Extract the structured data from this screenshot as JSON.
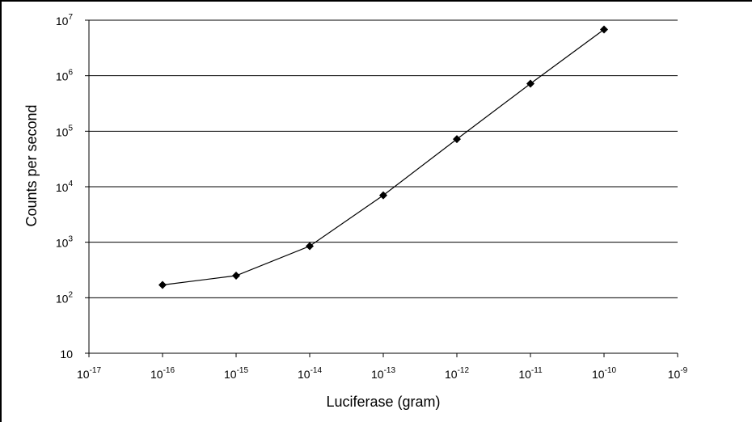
{
  "chart_data": {
    "type": "line",
    "xlabel": "Luciferase (gram)",
    "ylabel": "Counts per second",
    "x_scale": "log",
    "y_scale": "log",
    "xlim": [
      1e-17,
      1e-09
    ],
    "ylim": [
      10,
      10000000
    ],
    "grid": "horizontal",
    "legend": "none",
    "x_tick_labels": [
      {
        "base": "10",
        "exp": "-17"
      },
      {
        "base": "10",
        "exp": "-16"
      },
      {
        "base": "10",
        "exp": "-15"
      },
      {
        "base": "10",
        "exp": "-14"
      },
      {
        "base": "10",
        "exp": "-13"
      },
      {
        "base": "10",
        "exp": "-12"
      },
      {
        "base": "10",
        "exp": "-11"
      },
      {
        "base": "10",
        "exp": "-10"
      },
      {
        "base": "10",
        "exp": "-9"
      }
    ],
    "y_tick_labels": [
      {
        "base": "10",
        "exp": ""
      },
      {
        "base": "10",
        "exp": "2"
      },
      {
        "base": "10",
        "exp": "3"
      },
      {
        "base": "10",
        "exp": "4"
      },
      {
        "base": "10",
        "exp": "5"
      },
      {
        "base": "10",
        "exp": "6"
      },
      {
        "base": "10",
        "exp": "7"
      }
    ],
    "series": [
      {
        "x": [
          1e-16,
          1e-15,
          1e-14,
          1e-13,
          1e-12,
          1e-11,
          1e-10
        ],
        "y": [
          170,
          250,
          850,
          7000,
          72000,
          720000,
          6800000
        ],
        "marker": "diamond",
        "color": "#000000"
      }
    ]
  }
}
